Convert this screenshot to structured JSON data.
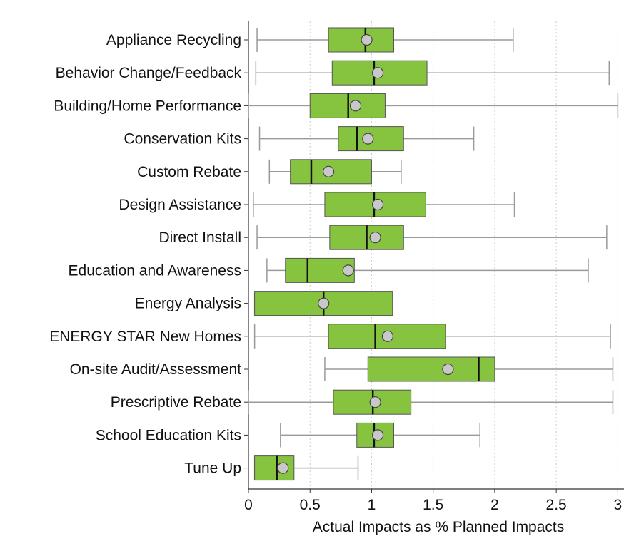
{
  "chart_data": {
    "type": "boxplot",
    "title": "",
    "xlabel": "Actual Impacts as % Planned Impacts",
    "ylabel": "",
    "xlim": [
      0,
      3.05
    ],
    "xticks": [
      0,
      0.5,
      1,
      1.5,
      2,
      2.5,
      3
    ],
    "xtick_labels": [
      "0",
      "0.5",
      "1",
      "1.5",
      "2",
      "2.5",
      "3"
    ],
    "grid": "vertical-dotted",
    "colors": {
      "box_fill": "#86c440",
      "box_stroke": "#555555",
      "whisker": "#9a9a9a",
      "mean_marker": "#c8c8c8",
      "median": "#111111"
    },
    "categories": [
      "Appliance Recycling",
      "Behavior Change/Feedback",
      "Building/Home Performance",
      "Conservation Kits",
      "Custom Rebate",
      "Design Assistance",
      "Direct Install",
      "Education and Awareness",
      "Energy Analysis",
      "ENERGY STAR New Homes",
      "On-site Audit/Assessment",
      "Prescriptive Rebate",
      "School Education Kits",
      "Tune Up"
    ],
    "boxes": [
      {
        "min": 0.07,
        "q1": 0.65,
        "median": 0.95,
        "q3": 1.18,
        "max": 2.15,
        "mean": 0.96
      },
      {
        "min": 0.06,
        "q1": 0.68,
        "median": 1.02,
        "q3": 1.45,
        "max": 2.93,
        "mean": 1.05
      },
      {
        "min": 0.0,
        "q1": 0.5,
        "median": 0.81,
        "q3": 1.11,
        "max": 3.0,
        "mean": 0.87
      },
      {
        "min": 0.09,
        "q1": 0.73,
        "median": 0.88,
        "q3": 1.26,
        "max": 1.83,
        "mean": 0.97
      },
      {
        "min": 0.17,
        "q1": 0.34,
        "median": 0.51,
        "q3": 1.0,
        "max": 1.24,
        "mean": 0.65
      },
      {
        "min": 0.04,
        "q1": 0.62,
        "median": 1.02,
        "q3": 1.44,
        "max": 2.16,
        "mean": 1.05
      },
      {
        "min": 0.07,
        "q1": 0.66,
        "median": 0.96,
        "q3": 1.26,
        "max": 2.91,
        "mean": 1.03
      },
      {
        "min": 0.15,
        "q1": 0.3,
        "median": 0.48,
        "q3": 0.86,
        "max": 2.76,
        "mean": 0.81
      },
      {
        "min": 0.05,
        "q1": 0.05,
        "median": 0.61,
        "q3": 1.17,
        "max": 1.17,
        "mean": 0.61
      },
      {
        "min": 0.05,
        "q1": 0.65,
        "median": 1.03,
        "q3": 1.6,
        "max": 2.94,
        "mean": 1.13
      },
      {
        "min": 0.62,
        "q1": 0.97,
        "median": 1.87,
        "q3": 2.0,
        "max": 2.96,
        "mean": 1.62
      },
      {
        "min": 0.0,
        "q1": 0.69,
        "median": 1.01,
        "q3": 1.32,
        "max": 2.96,
        "mean": 1.03
      },
      {
        "min": 0.26,
        "q1": 0.88,
        "median": 1.02,
        "q3": 1.18,
        "max": 1.88,
        "mean": 1.05
      },
      {
        "min": 0.05,
        "q1": 0.05,
        "median": 0.23,
        "q3": 0.37,
        "max": 0.89,
        "mean": 0.28
      }
    ]
  }
}
